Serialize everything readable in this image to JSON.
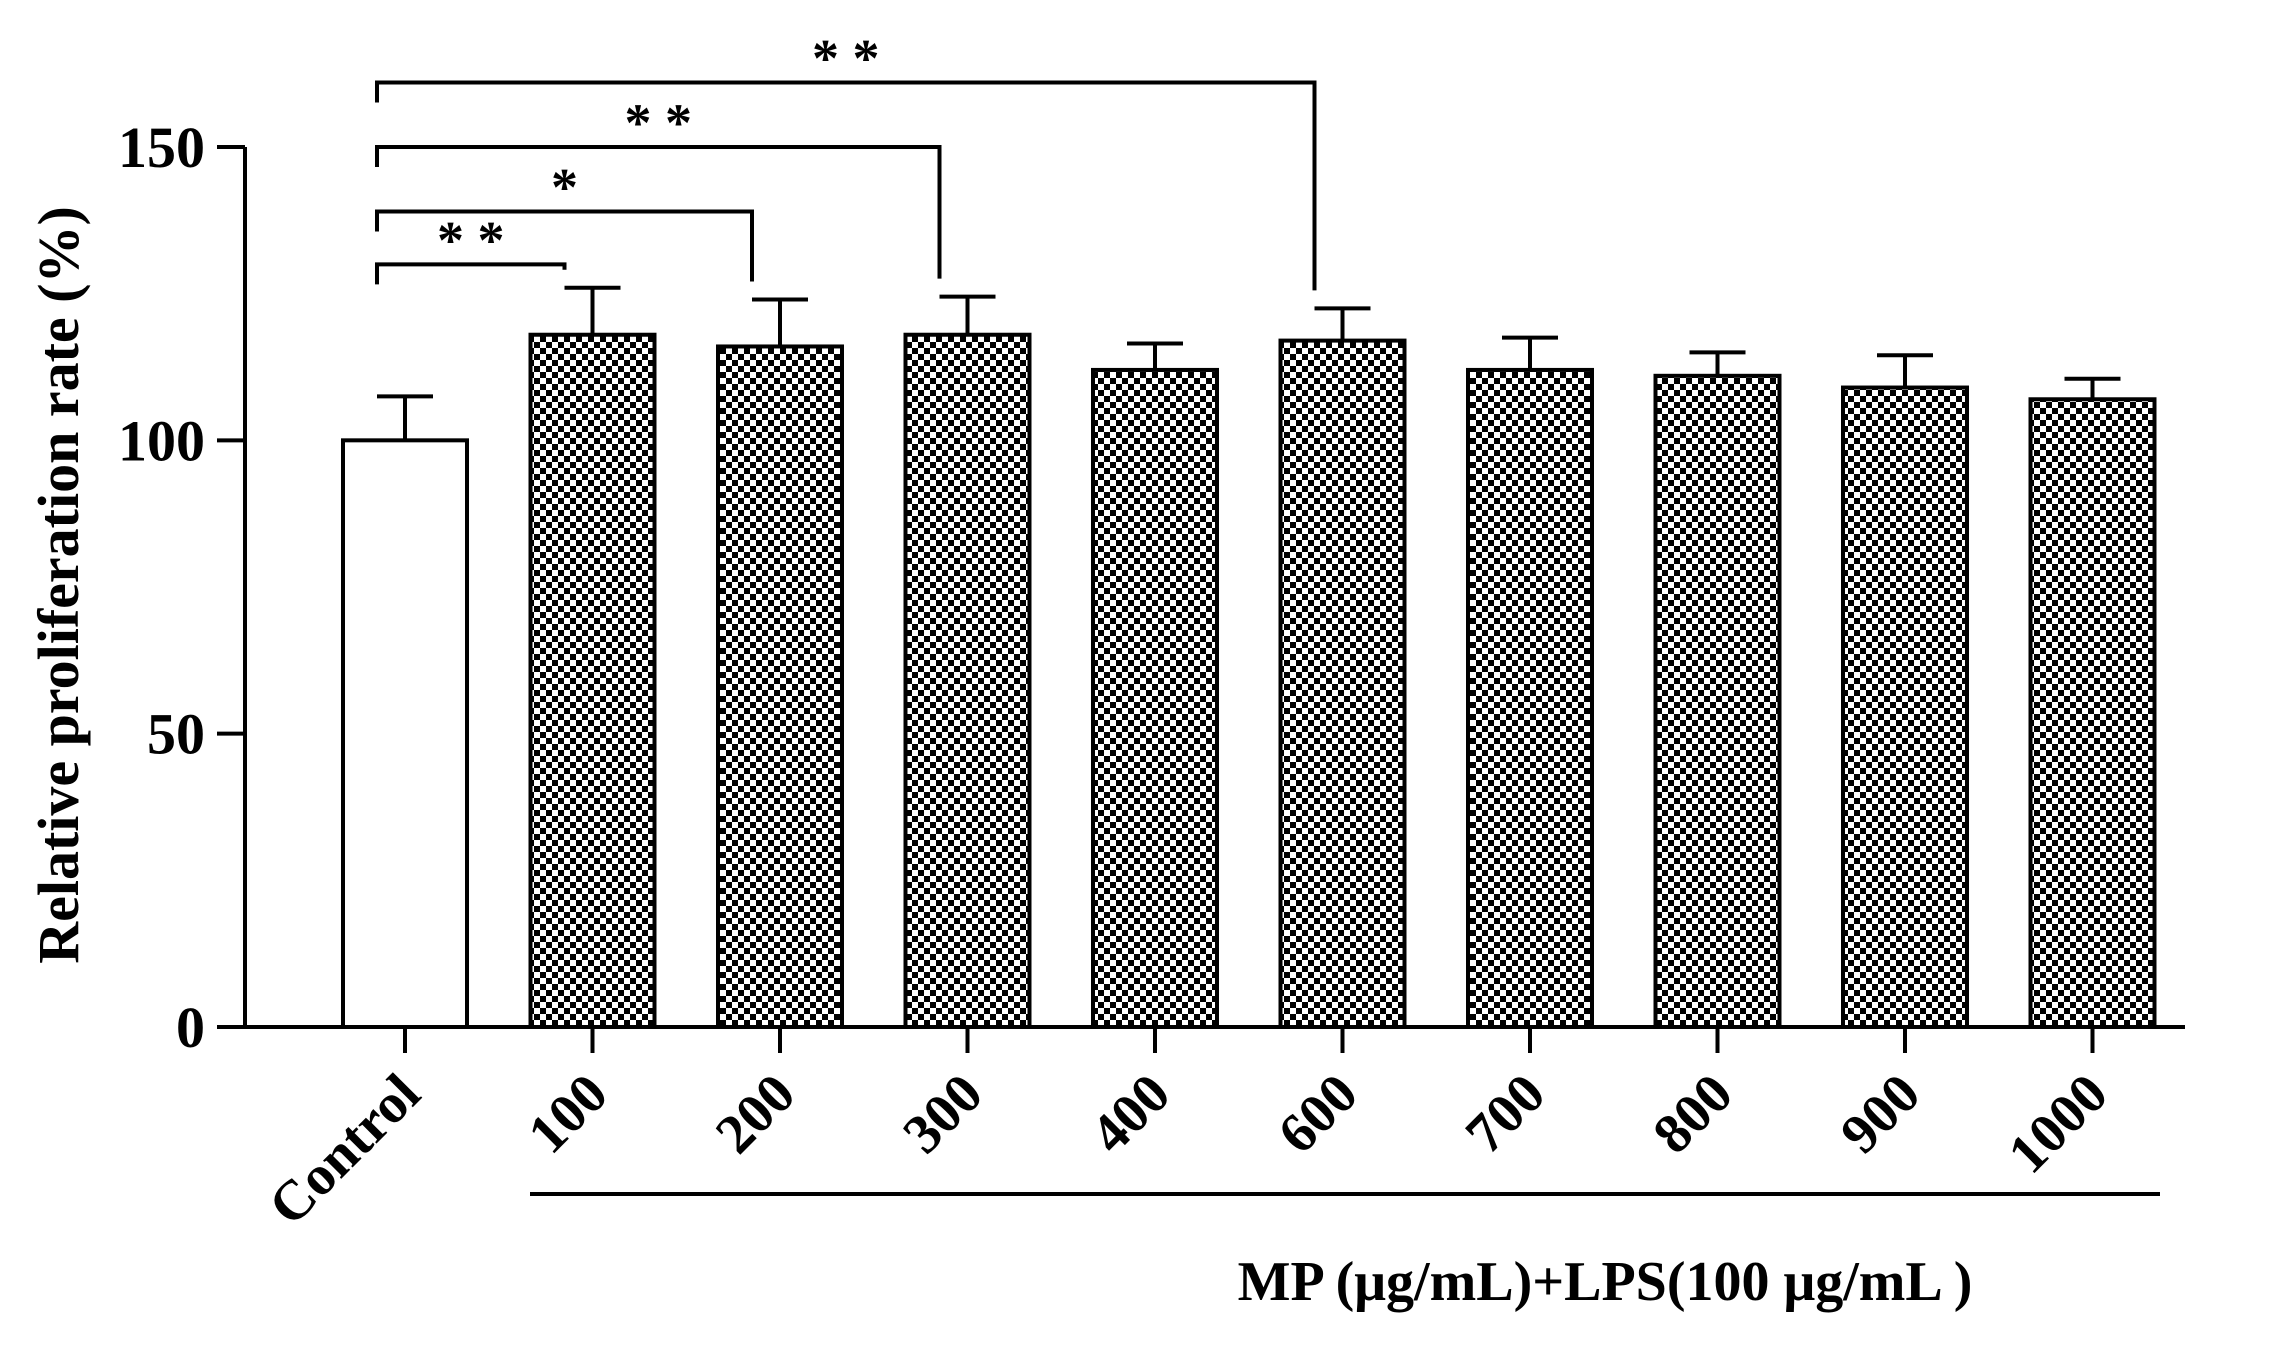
{
  "chart_data": {
    "type": "bar",
    "ylabel": "Relative proliferation rate (%)",
    "group_label": "MP (μg/mL)+LPS(100 μg/mL )",
    "categories": [
      "Control",
      "100",
      "200",
      "300",
      "400",
      "600",
      "700",
      "800",
      "900",
      "1000"
    ],
    "values": [
      100,
      118,
      116,
      118,
      112,
      117,
      112,
      111,
      109,
      107
    ],
    "errors": [
      7.5,
      8,
      8,
      6.5,
      4.5,
      5.5,
      5.5,
      4,
      5.5,
      3.5
    ],
    "ylim": [
      0,
      150
    ],
    "yticks": [
      "0",
      "50",
      "100",
      "150"
    ],
    "grid": false,
    "legend": "none",
    "bar_fills": [
      "white",
      "checkered",
      "checkered",
      "checkered",
      "checkered",
      "checkered",
      "checkered",
      "checkered",
      "checkered",
      "checkered"
    ],
    "significance": [
      {
        "from": "Control",
        "to": "100",
        "label": "**",
        "level": 130
      },
      {
        "from": "Control",
        "to": "200",
        "label": "*",
        "level": 139
      },
      {
        "from": "Control",
        "to": "300",
        "label": "**",
        "level": 150
      },
      {
        "from": "Control",
        "to": "600",
        "label": "**",
        "level": 161
      }
    ]
  },
  "colors": {
    "bar_edge": "#000000",
    "checker_dark": "#000000",
    "checker_light": "#ffffff"
  }
}
